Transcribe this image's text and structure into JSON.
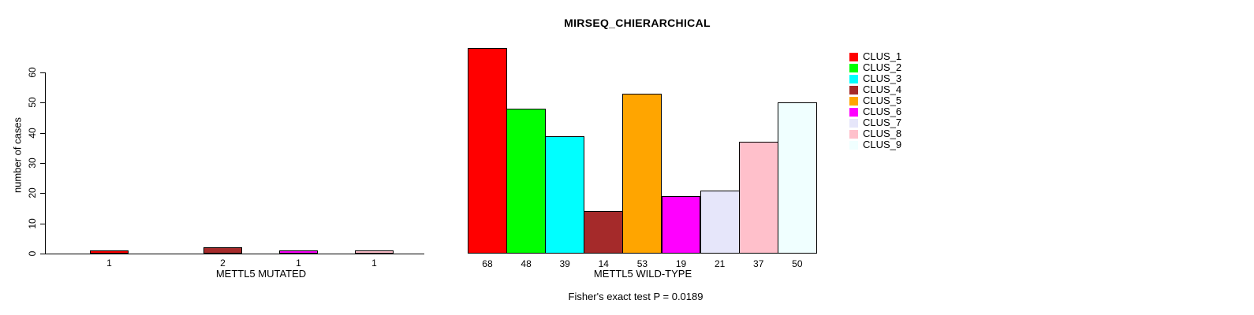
{
  "title": "MIRSEQ_CHIERARCHICAL",
  "note": "Fisher's exact test P = 0.0189",
  "y_axis": {
    "label": "number of cases",
    "ticks": [
      0,
      10,
      20,
      30,
      40,
      50,
      60
    ],
    "ylim": [
      0,
      60
    ]
  },
  "legend": {
    "position": "right",
    "items": [
      {
        "label": "CLUS_1",
        "color": "#FF0000"
      },
      {
        "label": "CLUS_2",
        "color": "#00FF00"
      },
      {
        "label": "CLUS_3",
        "color": "#00FFFF"
      },
      {
        "label": "CLUS_4",
        "color": "#A52A2A"
      },
      {
        "label": "CLUS_5",
        "color": "#FFA500"
      },
      {
        "label": "CLUS_6",
        "color": "#FF00FF"
      },
      {
        "label": "CLUS_7",
        "color": "#E6E6FA"
      },
      {
        "label": "CLUS_8",
        "color": "#FFC0CB"
      },
      {
        "label": "CLUS_9",
        "color": "#F0FFFF"
      }
    ]
  },
  "chart_data": [
    {
      "type": "bar",
      "xlabel": "METTL5 MUTATED",
      "clusters": [
        "CLUS_1",
        "CLUS_4",
        "CLUS_6",
        "CLUS_8"
      ],
      "categories": [
        "1",
        "2",
        "1",
        "1"
      ],
      "values": [
        1,
        2,
        1,
        1
      ],
      "bar_labels": [
        "1",
        "2",
        "1",
        "1"
      ],
      "colors": [
        "#FF0000",
        "#A52A2A",
        "#FF00FF",
        "#FFC0CB"
      ],
      "ylabel": "number of cases",
      "ylim": [
        0,
        60
      ],
      "grid": false
    },
    {
      "type": "bar",
      "xlabel": "METTL5 WILD-TYPE",
      "clusters": [
        "CLUS_1",
        "CLUS_2",
        "CLUS_3",
        "CLUS_4",
        "CLUS_5",
        "CLUS_6",
        "CLUS_7",
        "CLUS_8",
        "CLUS_9"
      ],
      "categories": [
        "68",
        "48",
        "39",
        "14",
        "53",
        "19",
        "21",
        "37",
        "50"
      ],
      "values": [
        68,
        48,
        39,
        14,
        53,
        19,
        21,
        37,
        50
      ],
      "bar_labels": [
        "68",
        "48",
        "39",
        "14",
        "53",
        "19",
        "21",
        "37",
        "50"
      ],
      "colors": [
        "#FF0000",
        "#00FF00",
        "#00FFFF",
        "#A52A2A",
        "#FFA500",
        "#FF00FF",
        "#E6E6FA",
        "#FFC0CB",
        "#F0FFFF"
      ],
      "ylabel": "number of cases",
      "ylim": [
        0,
        60
      ],
      "grid": false
    }
  ]
}
